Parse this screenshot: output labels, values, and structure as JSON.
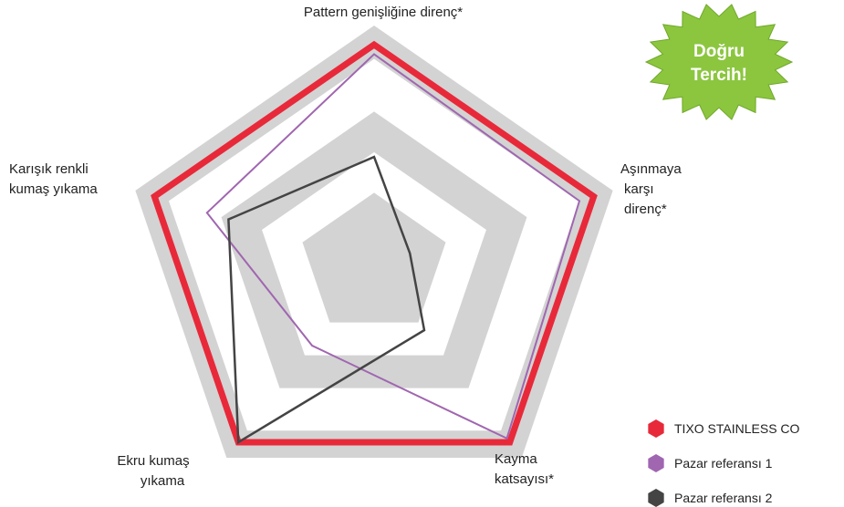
{
  "chart_data": {
    "type": "radar",
    "categories": [
      [
        "Pattern genişliğine direnç*"
      ],
      [
        "Aşınmaya",
        "karşı",
        "direnç*"
      ],
      [
        "Kayma",
        "katsayısı*"
      ],
      [
        "Ekru kumaş",
        "yıkama"
      ],
      [
        "Karışık renkli",
        "kumaş yıkama"
      ]
    ],
    "rlim": [
      0,
      100
    ],
    "series": [
      {
        "name": "TIXO STAINLESS CO",
        "color": "#e8293a",
        "values": [
          92,
          92,
          92,
          92,
          92
        ]
      },
      {
        "name": "Pazar referansı 1",
        "color": "#a066b0",
        "values": [
          88,
          86,
          90,
          42,
          70
        ]
      },
      {
        "name": "Pazar referansı 2",
        "color": "#444444",
        "values": [
          45,
          15,
          34,
          92,
          61
        ]
      }
    ],
    "badge": [
      "Doğru",
      "Tercih!"
    ]
  }
}
